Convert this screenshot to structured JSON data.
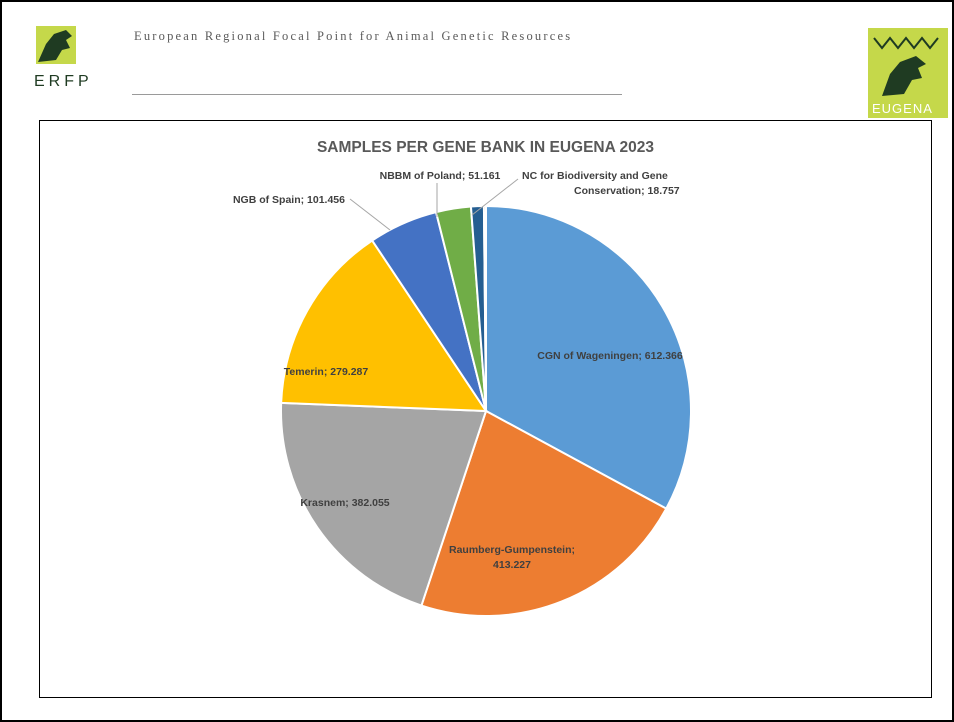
{
  "header": {
    "title": "European Regional Focal Point for Animal Genetic Resources",
    "logo_left_text": "ERFP",
    "logo_right_text": "EUGENA"
  },
  "colors": {
    "brand_green": "#c5d84a",
    "brand_dark": "#1f3b22",
    "cgn": "#5b9bd5",
    "raumberg": "#ed7d31",
    "krasnem": "#a5a5a5",
    "temerin": "#ffc000",
    "ngb_spain": "#4472c4",
    "nbbm_poland": "#70ad47",
    "nc_biodiversity": "#255e91",
    "other": "#9e480e"
  },
  "chart_data": {
    "type": "pie",
    "title": "SAMPLES PER GENE BANK IN EUGENA 2023",
    "legend": "none",
    "slices": [
      {
        "name": "CGN of Wageningen",
        "value": 612366,
        "label": "CGN of Wageningen; 612.366"
      },
      {
        "name": "Raumberg-Gumpenstein",
        "value": 413227,
        "label_lines": [
          "Raumberg-Gumpenstein;",
          "413.227"
        ]
      },
      {
        "name": "Krasnem",
        "value": 382055,
        "label": "Krasnem; 382.055"
      },
      {
        "name": "Temerin",
        "value": 279287,
        "label": "Temerin; 279.287"
      },
      {
        "name": "NGB of Spain",
        "value": 101456,
        "label": "NGB of Spain; 101.456"
      },
      {
        "name": "NBBM of Poland",
        "value": 51161,
        "label": "NBBM of Poland; 51.161"
      },
      {
        "name": "NC for Biodiversity and Gene Conservation",
        "value": 18757,
        "label_lines": [
          "NC for Biodiversity and Gene",
          "Conservation; 18.757"
        ]
      },
      {
        "name": "",
        "value": 3000,
        "label": ""
      }
    ]
  }
}
